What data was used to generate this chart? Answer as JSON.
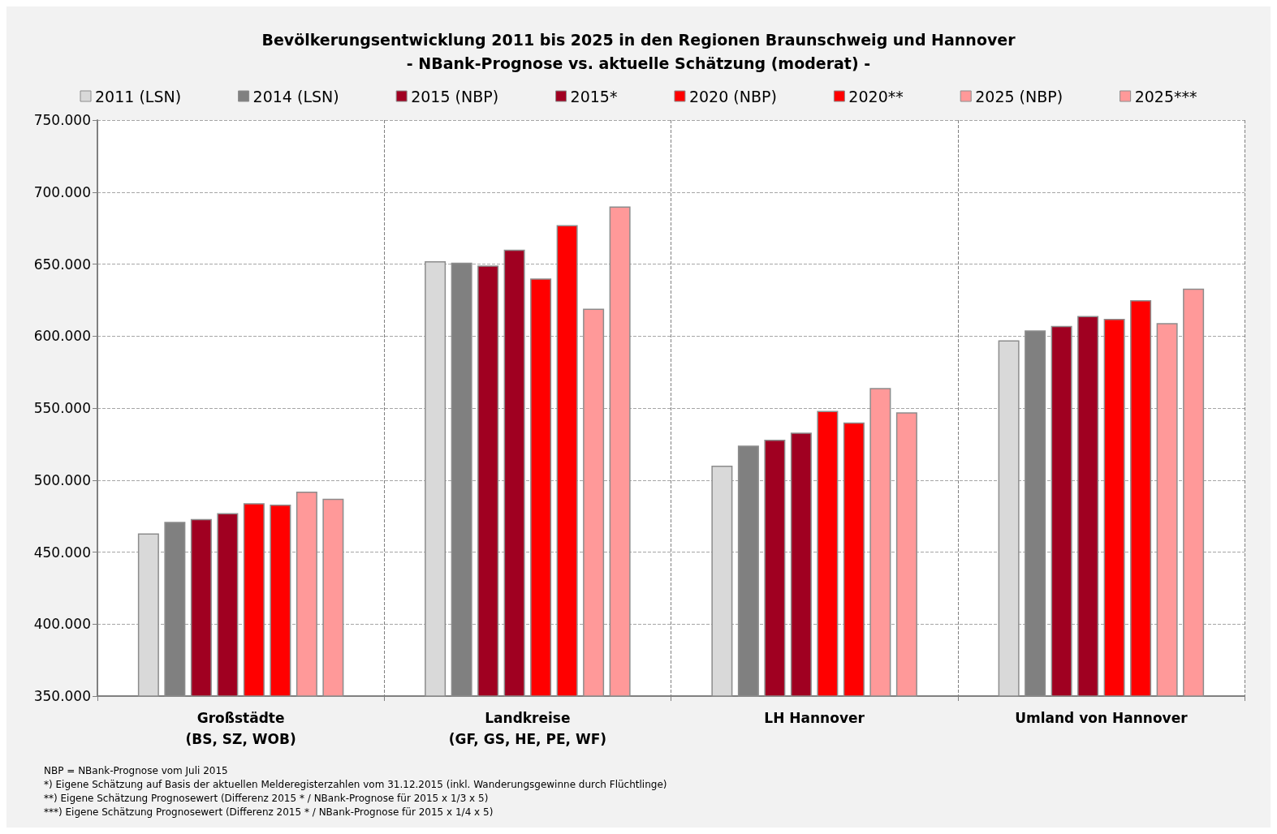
{
  "chart_data": {
    "type": "bar",
    "title": "Bevölkerungsentwicklung 2011 bis 2025 in den Regionen Braunschweig und Hannover",
    "subtitle": "- NBank-Prognose vs. aktuelle Schätzung (moderat) -",
    "categories": [
      "Großstädte\n(BS, SZ, WOB)",
      "Landkreise\n(GF, GS, HE, PE, WF)",
      "LH Hannover",
      "Umland von Hannover"
    ],
    "series": [
      {
        "name": "2011 (LSN)",
        "color": "#d9d9d9",
        "values": [
          463000,
          652000,
          510000,
          597000
        ]
      },
      {
        "name": "2014 (LSN)",
        "color": "#808080",
        "values": [
          471000,
          651000,
          524000,
          604000
        ]
      },
      {
        "name": "2015 (NBP)",
        "color": "#a00021",
        "values": [
          473000,
          649000,
          528000,
          607000
        ]
      },
      {
        "name": "2015*",
        "color": "#a00021",
        "values": [
          477000,
          660000,
          533000,
          614000
        ]
      },
      {
        "name": "2020 (NBP)",
        "color": "#ff0000",
        "values": [
          484000,
          640000,
          548000,
          612000
        ]
      },
      {
        "name": "2020**",
        "color": "#ff0000",
        "values": [
          483000,
          677000,
          540000,
          625000
        ]
      },
      {
        "name": "2025 (NBP)",
        "color": "#ff9999",
        "values": [
          492000,
          619000,
          564000,
          609000
        ]
      },
      {
        "name": "2025***",
        "color": "#ff9999",
        "values": [
          487000,
          690000,
          547000,
          633000
        ]
      }
    ],
    "ylim": [
      350000,
      750000
    ],
    "yticks": [
      {
        "value": 350000,
        "label": "350.000"
      },
      {
        "value": 400000,
        "label": "400.000"
      },
      {
        "value": 450000,
        "label": "450.000"
      },
      {
        "value": 500000,
        "label": "500.000"
      },
      {
        "value": 550000,
        "label": "550.000"
      },
      {
        "value": 600000,
        "label": "600.000"
      },
      {
        "value": 650000,
        "label": "650.000"
      },
      {
        "value": 700000,
        "label": "700.000"
      },
      {
        "value": 750000,
        "label": "750.000"
      }
    ],
    "grid": true,
    "legend": "top",
    "annotations": [
      "NBP = NBank-Prognose vom Juli 2015",
      "*) Eigene Schätzung auf Basis der aktuellen Melderegisterzahlen vom 31.12.2015 (inkl. Wanderungsgewinne durch Flüchtlinge)",
      "**) Eigene Schätzung Prognosewert (Differenz 2015 * / NBank-Prognose für 2015 x 1/3 x 5)",
      "***) Eigene Schätzung Prognosewert (Differenz 2015 * / NBank-Prognose für 2015 x 1/4 x 5)"
    ]
  }
}
